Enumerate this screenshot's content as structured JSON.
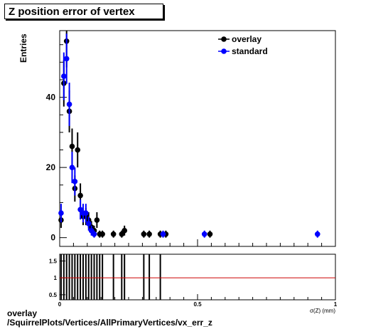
{
  "page": {
    "title": "Z position error of vertex",
    "caption_line1": "overlay",
    "caption_line2": "/SquirrelPlots/Vertices/AllPrimaryVertices/vx_err_z"
  },
  "chart_data": [
    {
      "type": "scatter",
      "title": "Z position error of vertex",
      "ylabel": "Entries",
      "xlabel": "σ(Z) (mm)",
      "xlim": [
        0,
        1
      ],
      "ylim": [
        -2.5,
        59
      ],
      "yticks": [
        0,
        20,
        40
      ],
      "legend_position": "top-right",
      "colors": {
        "overlay": "#000000",
        "standard": "#0000ff"
      },
      "series": [
        {
          "name": "overlay",
          "points": [
            {
              "x": 0.005,
              "y": 5
            },
            {
              "x": 0.015,
              "y": 44
            },
            {
              "x": 0.025,
              "y": 56
            },
            {
              "x": 0.035,
              "y": 36
            },
            {
              "x": 0.045,
              "y": 26
            },
            {
              "x": 0.055,
              "y": 14
            },
            {
              "x": 0.065,
              "y": 25
            },
            {
              "x": 0.075,
              "y": 12
            },
            {
              "x": 0.085,
              "y": 6
            },
            {
              "x": 0.095,
              "y": 6
            },
            {
              "x": 0.105,
              "y": 5
            },
            {
              "x": 0.115,
              "y": 3
            },
            {
              "x": 0.125,
              "y": 2
            },
            {
              "x": 0.135,
              "y": 5
            },
            {
              "x": 0.145,
              "y": 1
            },
            {
              "x": 0.155,
              "y": 1
            },
            {
              "x": 0.195,
              "y": 1
            },
            {
              "x": 0.225,
              "y": 1
            },
            {
              "x": 0.235,
              "y": 2
            },
            {
              "x": 0.305,
              "y": 1
            },
            {
              "x": 0.325,
              "y": 1
            },
            {
              "x": 0.365,
              "y": 1
            },
            {
              "x": 0.385,
              "y": 1
            },
            {
              "x": 0.545,
              "y": 1
            }
          ]
        },
        {
          "name": "standard",
          "points": [
            {
              "x": 0.005,
              "y": 7
            },
            {
              "x": 0.015,
              "y": 46
            },
            {
              "x": 0.025,
              "y": 51
            },
            {
              "x": 0.035,
              "y": 38
            },
            {
              "x": 0.045,
              "y": 20
            },
            {
              "x": 0.055,
              "y": 16
            },
            {
              "x": 0.075,
              "y": 8
            },
            {
              "x": 0.085,
              "y": 7
            },
            {
              "x": 0.095,
              "y": 7
            },
            {
              "x": 0.105,
              "y": 4
            },
            {
              "x": 0.115,
              "y": 2
            },
            {
              "x": 0.125,
              "y": 1
            },
            {
              "x": 0.375,
              "y": 1
            },
            {
              "x": 0.525,
              "y": 1
            },
            {
              "x": 0.935,
              "y": 1
            }
          ]
        }
      ]
    },
    {
      "type": "scatter",
      "xlabel": "σ(Z) (mm)",
      "xlim": [
        0,
        1
      ],
      "ylim": [
        0.35,
        1.7
      ],
      "yticks": [
        0.5,
        1,
        1.5
      ],
      "ytick_labels": [
        "0.5",
        "1",
        "1.5"
      ],
      "xticks": [
        0,
        0.5,
        1
      ],
      "xtick_labels": [
        "0",
        "0.5",
        "1"
      ],
      "reference_line": 1,
      "reference_color": "#cc0000",
      "error_bar_x": [
        0.005,
        0.015,
        0.025,
        0.035,
        0.045,
        0.055,
        0.065,
        0.075,
        0.085,
        0.095,
        0.105,
        0.115,
        0.125,
        0.135,
        0.145,
        0.155,
        0.195,
        0.225,
        0.235,
        0.305,
        0.325,
        0.365
      ]
    }
  ]
}
